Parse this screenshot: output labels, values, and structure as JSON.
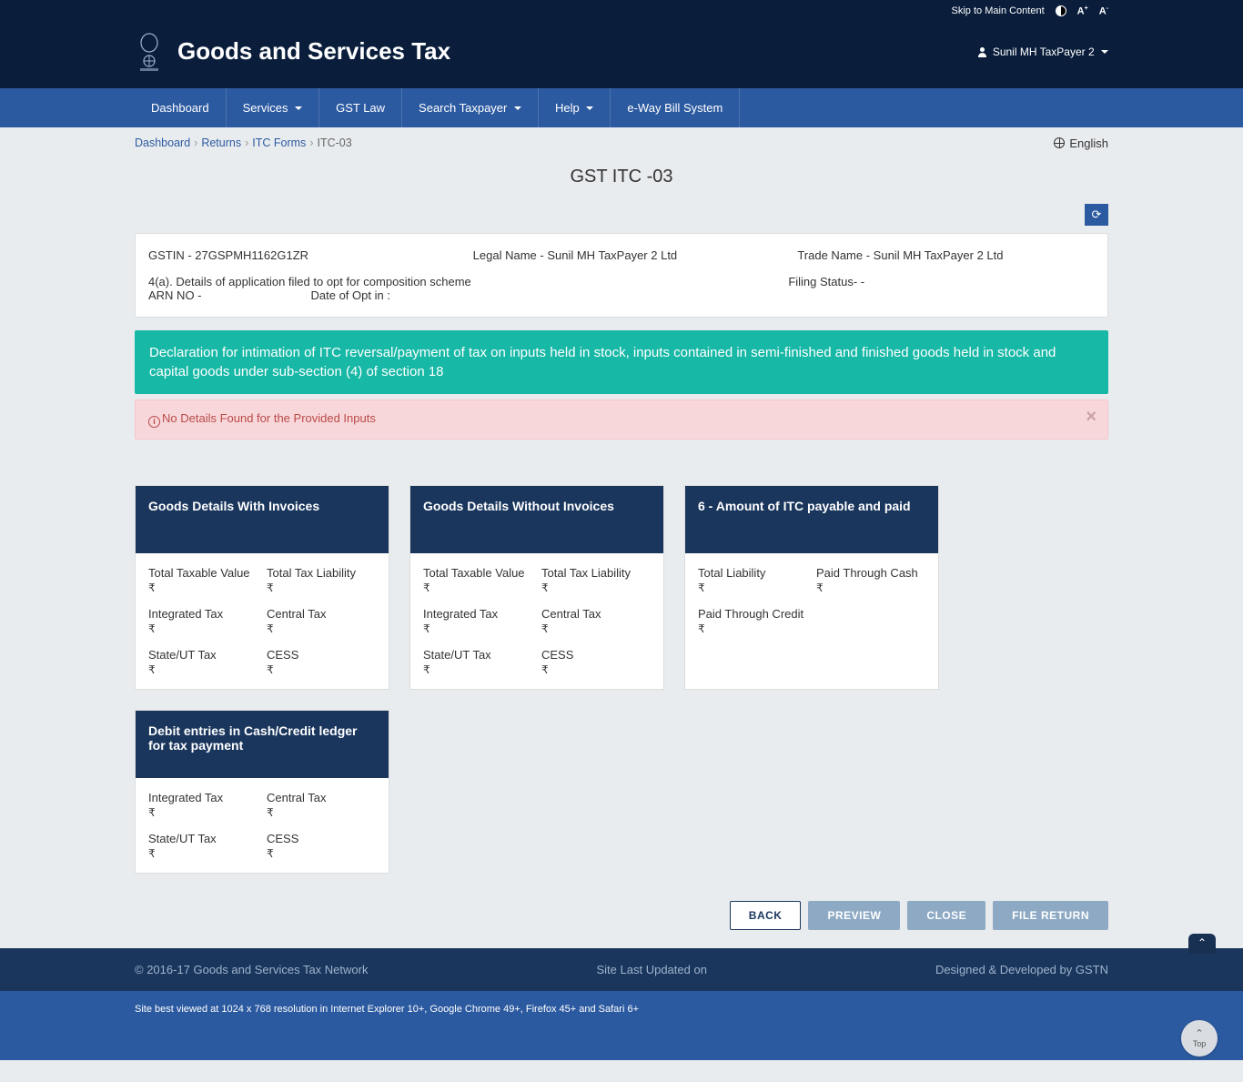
{
  "topbar": {
    "skip": "Skip to Main Content",
    "aplus": "A",
    "aminus": "A"
  },
  "header": {
    "title": "Goods and Services Tax",
    "user": "Sunil MH TaxPayer 2"
  },
  "nav": {
    "items": [
      "Dashboard",
      "Services",
      "GST Law",
      "Search Taxpayer",
      "Help",
      "e-Way Bill System"
    ],
    "dropdowns": [
      false,
      true,
      false,
      true,
      true,
      false
    ]
  },
  "breadcrumb": {
    "items": [
      "Dashboard",
      "Returns",
      "ITC Forms",
      "ITC-03"
    ]
  },
  "lang": "English",
  "pageTitle": "GST ITC -03",
  "info": {
    "gstin_label": "GSTIN - ",
    "gstin": "27GSPMH1162G1ZR",
    "legal_label": "Legal Name - ",
    "legal": "Sunil MH TaxPayer 2 Ltd",
    "trade_label": "Trade Name - ",
    "trade": "Sunil MH TaxPayer 2 Ltd",
    "detail4a": "4(a). Details of application filed to opt for composition scheme",
    "arn": "ARN NO -",
    "optin": "Date of Opt in :",
    "filing": "Filing Status- -"
  },
  "declaration": "Declaration for intimation of ITC reversal/payment of tax on inputs held in stock, inputs contained in semi-finished and finished goods held in stock and capital goods under sub-section (4) of section 18",
  "alert": "No Details Found for the Provided Inputs",
  "currency": "₹",
  "cards": [
    {
      "title": "Goods Details With Invoices",
      "metrics": [
        {
          "label": "Total Taxable Value",
          "val": "₹"
        },
        {
          "label": "Total Tax Liability",
          "val": "₹"
        },
        {
          "label": "Integrated Tax",
          "val": "₹"
        },
        {
          "label": "Central Tax",
          "val": "₹"
        },
        {
          "label": "State/UT Tax",
          "val": "₹"
        },
        {
          "label": "CESS",
          "val": "₹"
        }
      ]
    },
    {
      "title": "Goods Details Without Invoices",
      "metrics": [
        {
          "label": "Total Taxable Value",
          "val": "₹"
        },
        {
          "label": "Total Tax Liability",
          "val": "₹"
        },
        {
          "label": "Integrated Tax",
          "val": "₹"
        },
        {
          "label": "Central Tax",
          "val": "₹"
        },
        {
          "label": "State/UT Tax",
          "val": "₹"
        },
        {
          "label": "CESS",
          "val": "₹"
        }
      ]
    },
    {
      "title": "6 - Amount of ITC payable and paid",
      "metrics": [
        {
          "label": "Total Liability",
          "val": "₹"
        },
        {
          "label": "Paid Through Cash",
          "val": "₹"
        },
        {
          "label": "Paid Through Credit",
          "val": "₹"
        }
      ]
    },
    {
      "title": "Debit entries in Cash/Credit ledger for tax payment",
      "metrics": [
        {
          "label": "Integrated Tax",
          "val": "₹"
        },
        {
          "label": "Central Tax",
          "val": "₹"
        },
        {
          "label": "State/UT Tax",
          "val": "₹"
        },
        {
          "label": "CESS",
          "val": "₹"
        }
      ]
    }
  ],
  "buttons": {
    "back": "BACK",
    "preview": "PREVIEW",
    "close": "CLOSE",
    "file": "FILE RETURN"
  },
  "subfooter": {
    "copyright": "© 2016-17 Goods and Services Tax Network",
    "updated": "Site Last Updated on",
    "designed": "Designed & Developed by GSTN"
  },
  "footer": "Site best viewed at 1024 x 768 resolution in Internet Explorer 10+, Google Chrome 49+, Firefox 45+ and Safari 6+",
  "topBtn": "Top"
}
